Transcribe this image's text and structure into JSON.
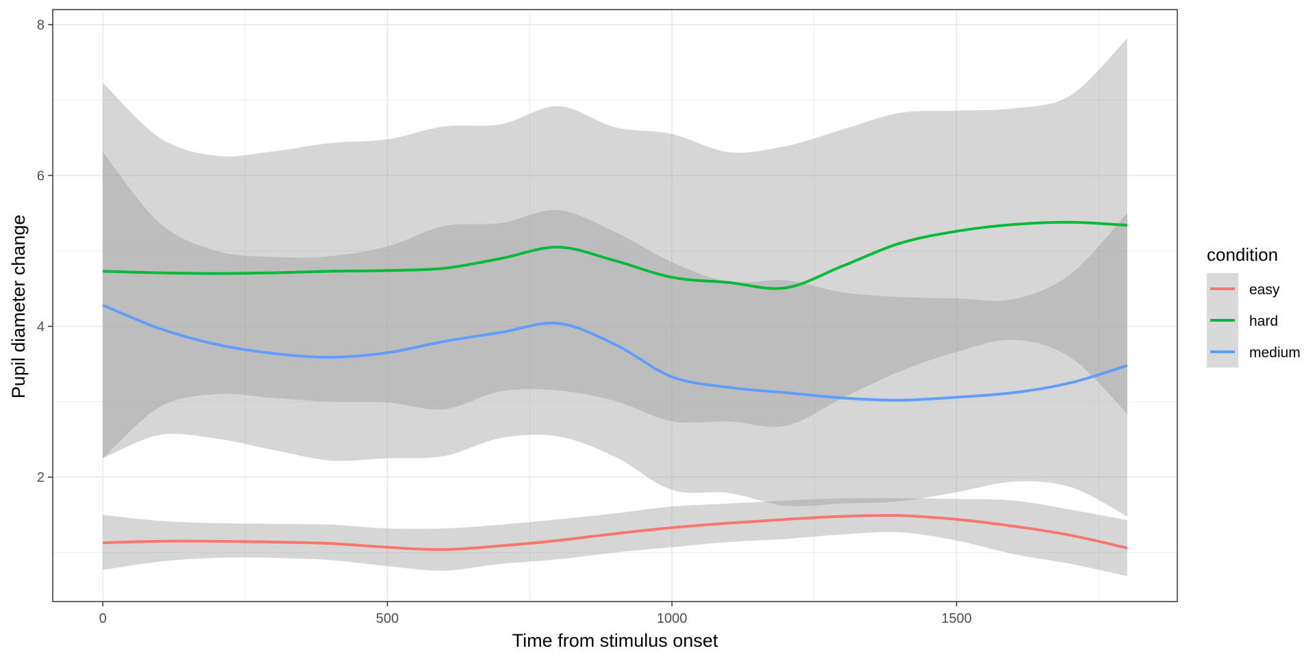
{
  "chart_data": {
    "type": "line",
    "xlabel": "Time from stimulus onset",
    "ylabel": "Pupil diameter change",
    "xlim": [
      -88,
      1888
    ],
    "ylim": [
      0.35,
      8.2
    ],
    "x_ticks": [
      0,
      500,
      1000,
      1500
    ],
    "y_ticks": [
      2,
      4,
      6,
      8
    ],
    "x_minor_ticks": [
      250,
      750,
      1250,
      1750
    ],
    "y_minor_ticks": [
      1,
      3,
      5,
      7
    ],
    "grid": true,
    "legend": {
      "title": "condition",
      "position": "right"
    },
    "colors": {
      "easy": "#F8766D",
      "hard": "#00BA38",
      "medium": "#619CFF",
      "ribbon": "#999999",
      "grid": "#ebebeb"
    },
    "x": [
      0,
      100,
      200,
      300,
      400,
      500,
      600,
      700,
      800,
      900,
      1000,
      1100,
      1200,
      1300,
      1400,
      1500,
      1600,
      1700,
      1800
    ],
    "series": [
      {
        "name": "easy",
        "values": [
          1.13,
          1.15,
          1.15,
          1.14,
          1.12,
          1.07,
          1.04,
          1.09,
          1.16,
          1.25,
          1.33,
          1.39,
          1.44,
          1.48,
          1.49,
          1.44,
          1.35,
          1.23,
          1.06
        ],
        "lower": [
          0.77,
          0.88,
          0.93,
          0.93,
          0.9,
          0.82,
          0.76,
          0.85,
          0.91,
          1.0,
          1.07,
          1.14,
          1.18,
          1.24,
          1.27,
          1.16,
          0.98,
          0.85,
          0.69
        ],
        "upper": [
          1.5,
          1.42,
          1.39,
          1.38,
          1.37,
          1.32,
          1.32,
          1.37,
          1.44,
          1.52,
          1.61,
          1.65,
          1.69,
          1.72,
          1.72,
          1.71,
          1.69,
          1.57,
          1.43
        ]
      },
      {
        "name": "hard",
        "values": [
          4.73,
          4.71,
          4.7,
          4.71,
          4.73,
          4.74,
          4.77,
          4.9,
          5.05,
          4.87,
          4.65,
          4.58,
          4.51,
          4.8,
          5.1,
          5.26,
          5.35,
          5.38,
          5.34
        ],
        "lower": [
          2.25,
          2.93,
          3.1,
          3.05,
          3.0,
          2.99,
          2.9,
          3.14,
          3.15,
          3.01,
          2.74,
          2.74,
          2.68,
          3.05,
          3.4,
          3.66,
          3.82,
          3.59,
          2.84
        ],
        "upper": [
          7.23,
          6.5,
          6.26,
          6.32,
          6.43,
          6.48,
          6.65,
          6.68,
          6.92,
          6.64,
          6.55,
          6.31,
          6.39,
          6.61,
          6.83,
          6.86,
          6.89,
          7.06,
          7.82
        ]
      },
      {
        "name": "medium",
        "values": [
          4.28,
          3.97,
          3.76,
          3.64,
          3.59,
          3.65,
          3.8,
          3.92,
          4.04,
          3.76,
          3.33,
          3.19,
          3.12,
          3.05,
          3.02,
          3.06,
          3.12,
          3.25,
          3.48
        ],
        "lower": [
          2.25,
          2.56,
          2.51,
          2.36,
          2.22,
          2.25,
          2.28,
          2.52,
          2.54,
          2.27,
          1.83,
          1.79,
          1.62,
          1.65,
          1.68,
          1.8,
          1.94,
          1.87,
          1.48
        ],
        "upper": [
          6.31,
          5.37,
          5.0,
          4.92,
          4.93,
          5.06,
          5.33,
          5.37,
          5.54,
          5.25,
          4.85,
          4.59,
          4.61,
          4.45,
          4.39,
          4.37,
          4.36,
          4.69,
          5.5
        ]
      }
    ]
  }
}
